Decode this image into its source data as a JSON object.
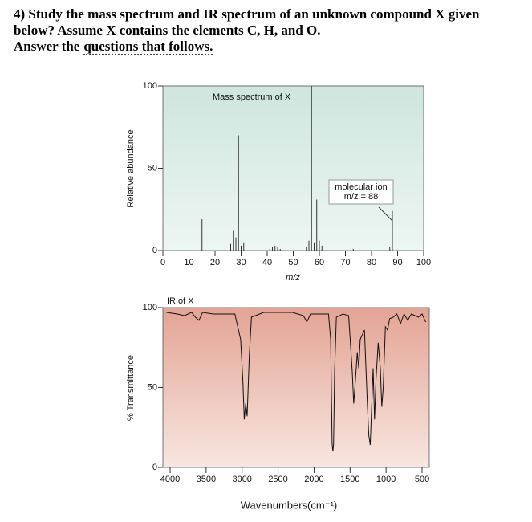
{
  "document": {
    "question": [
      "4) Study the mass spectrum and IR spectrum of an unknown compound X given",
      "below? Assume X contains the elements C, H, and O.",
      "Answer the",
      "questions that follows."
    ]
  },
  "chart_data": [
    {
      "type": "stem",
      "title": "Mass spectrum of X",
      "xlabel": "m/z",
      "ylabel": "Relative abundance",
      "annotation": [
        "molecular ion",
        "m/z = 88"
      ],
      "color": "#333333",
      "x": [
        15,
        26,
        27,
        28,
        29,
        30,
        31,
        41,
        42,
        43,
        44,
        45,
        55,
        56,
        57,
        58,
        59,
        60,
        61,
        73,
        87,
        88
      ],
      "values": [
        19,
        4,
        12,
        8,
        70,
        3,
        5,
        1,
        2,
        3,
        2,
        1,
        2,
        6,
        100,
        5,
        31,
        6,
        3,
        1,
        2,
        24
      ],
      "xlim": [
        0,
        100
      ],
      "ylim": [
        0,
        100
      ],
      "xticks": [
        0,
        10,
        20,
        30,
        40,
        50,
        60,
        70,
        80,
        90,
        100
      ],
      "yticks": [
        0,
        50,
        100
      ]
    },
    {
      "type": "line",
      "title": "IR of X",
      "xlabel": "Wavenumbers(cm⁻¹)",
      "ylabel": "% Transmittance",
      "color": "#111111",
      "x": [
        4050,
        3900,
        3800,
        3700,
        3650,
        3600,
        3550,
        3400,
        3100,
        3020,
        2990,
        2970,
        2950,
        2930,
        2900,
        2870,
        2700,
        2500,
        2300,
        2150,
        2100,
        2050,
        1900,
        1800,
        1770,
        1750,
        1740,
        1730,
        1715,
        1690,
        1600,
        1520,
        1470,
        1450,
        1430,
        1400,
        1380,
        1360,
        1300,
        1260,
        1240,
        1220,
        1200,
        1180,
        1160,
        1140,
        1110,
        1080,
        1060,
        1040,
        1010,
        980,
        950,
        900,
        850,
        800,
        750,
        700,
        650,
        600,
        550,
        500,
        450
      ],
      "values": [
        97,
        96,
        95,
        97,
        94,
        92,
        97,
        96,
        96,
        80,
        55,
        30,
        40,
        32,
        70,
        94,
        97,
        97,
        97,
        95,
        91,
        96,
        96,
        96,
        80,
        15,
        10,
        14,
        60,
        94,
        96,
        95,
        60,
        40,
        52,
        72,
        62,
        80,
        86,
        40,
        20,
        14,
        38,
        62,
        30,
        55,
        78,
        62,
        38,
        50,
        88,
        86,
        93,
        94,
        96,
        90,
        96,
        92,
        96,
        95,
        94,
        96,
        91
      ],
      "xlim": [
        4100,
        400
      ],
      "ylim": [
        0,
        100
      ],
      "xticks": [
        4000,
        3500,
        3000,
        2500,
        2000,
        1500,
        1000,
        500
      ],
      "yticks": [
        0,
        50,
        100
      ]
    }
  ]
}
